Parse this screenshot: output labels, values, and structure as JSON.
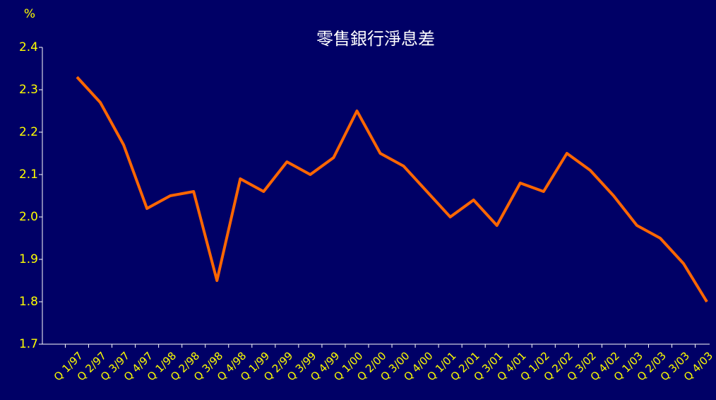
{
  "chart_data": {
    "type": "line",
    "title": "零售銀行淨息差",
    "y_label": "%",
    "categories": [
      "Q 1/97",
      "Q 2/97",
      "Q 3/97",
      "Q 4/97",
      "Q 1/98",
      "Q 2/98",
      "Q 3/98",
      "Q 4/98",
      "Q 1/99",
      "Q 2/99",
      "Q 3/99",
      "Q 4/99",
      "Q 1/00",
      "Q 2/00",
      "Q 3/00",
      "Q 4/00",
      "Q 1/01",
      "Q 2/01",
      "Q 3/01",
      "Q 4/01",
      "Q 1/02",
      "Q 2/02",
      "Q 3/02",
      "Q 4/02",
      "Q 1/03",
      "Q 2/03",
      "Q 3/03",
      "Q 4/03"
    ],
    "values": [
      2.33,
      2.27,
      2.17,
      2.02,
      2.05,
      2.06,
      1.85,
      2.09,
      2.06,
      2.13,
      2.1,
      2.14,
      2.25,
      2.15,
      2.12,
      2.06,
      2.0,
      2.04,
      1.98,
      2.08,
      2.06,
      2.15,
      2.11,
      2.05,
      1.98,
      1.95,
      1.89,
      1.8
    ],
    "color": "#ff6600",
    "ylim": [
      1.7,
      2.4
    ],
    "yticks": [
      1.7,
      1.8,
      1.9,
      {
        "value": 2,
        "label": "2.0"
      },
      2.1,
      2.2,
      2.3,
      2.4
    ]
  }
}
